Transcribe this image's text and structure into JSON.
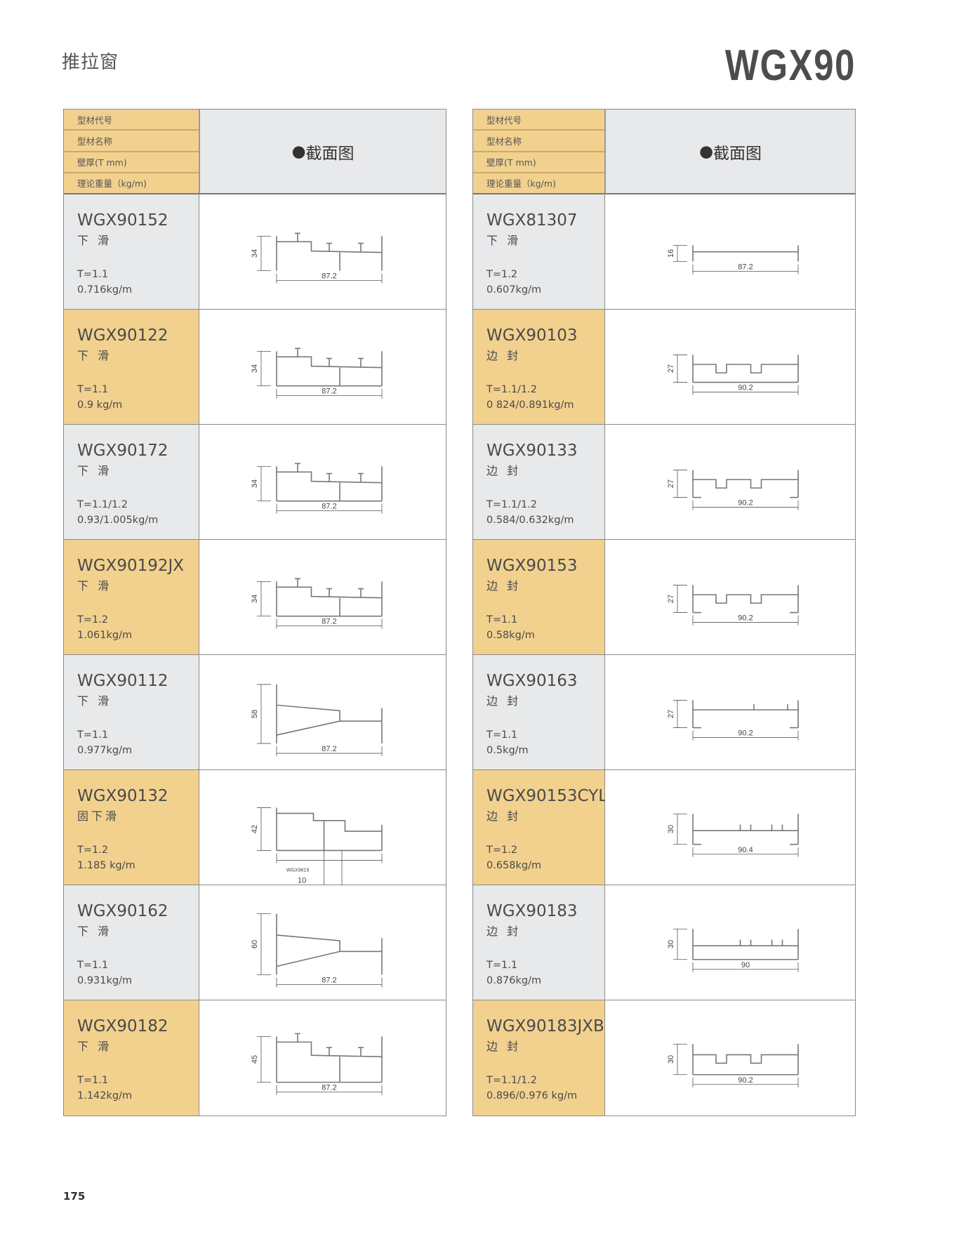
{
  "header": {
    "category": "推拉窗",
    "series": "WGX90",
    "page_number": "175"
  },
  "table_header": {
    "labels": [
      "型材代号",
      "型材名称",
      "壁厚(T mm)",
      "理论重量（kg/m)"
    ],
    "section_title": "截面图"
  },
  "colors": {
    "gold": "#f2d18f",
    "gray": "#e8e9eb",
    "line": "#8a8a8a"
  },
  "left_rows": [
    {
      "code": "WGX90152",
      "name": "下 滑",
      "thickness": "T=1.1",
      "weight": "0.716kg/m",
      "height_dim": "34",
      "width_dim": "87.2",
      "shape": "open-ledge"
    },
    {
      "code": "WGX90122",
      "name": "下 滑",
      "thickness": "T=1.1",
      "weight": "0.9 kg/m",
      "height_dim": "34",
      "width_dim": "87.2",
      "shape": "tube-ledge"
    },
    {
      "code": "WGX90172",
      "name": "下 滑",
      "thickness": "T=1.1/1.2",
      "weight": "0.93/1.005kg/m",
      "height_dim": "34",
      "width_dim": "87.2",
      "shape": "tube-ledge"
    },
    {
      "code": "WGX90192JX",
      "name": "下 滑",
      "thickness": "T=1.2",
      "weight": "1.061kg/m",
      "height_dim": "34",
      "width_dim": "87.2",
      "shape": "tube-ledge"
    },
    {
      "code": "WGX90112",
      "name": "下 滑",
      "thickness": "T=1.1",
      "weight": "0.977kg/m",
      "height_dim": "58",
      "width_dim": "87.2",
      "shape": "slope"
    },
    {
      "code": "WGX90132",
      "name": "固下滑",
      "thickness": "T=1.2",
      "weight": "1.185 kg/m",
      "height_dim": "42",
      "width_dim": "87.2",
      "shape": "fixed",
      "extra_label": "WGX9619",
      "extra_dim": "10"
    },
    {
      "code": "WGX90162",
      "name": "下 滑",
      "thickness": "T=1.1",
      "weight": "0.931kg/m",
      "height_dim": "60",
      "width_dim": "87.2",
      "shape": "slope-tall"
    },
    {
      "code": "WGX90182",
      "name": "下 滑",
      "thickness": "T=1.1",
      "weight": "1.142kg/m",
      "height_dim": "45",
      "width_dim": "87.2",
      "shape": "tube-ledge"
    }
  ],
  "right_rows": [
    {
      "code": "WGX81307",
      "name": "下 滑",
      "thickness": "T=1.2",
      "weight": "0.607kg/m",
      "height_dim": "16",
      "width_dim": "87.2",
      "shape": "flat"
    },
    {
      "code": "WGX90103",
      "name": "边 封",
      "thickness": "T=1.1/1.2",
      "weight": "0 824/0.891kg/m",
      "height_dim": "27",
      "width_dim": "90.2",
      "shape": "tube-notch"
    },
    {
      "code": "WGX90133",
      "name": "边 封",
      "thickness": "T=1.1/1.2",
      "weight": "0.584/0.632kg/m",
      "height_dim": "27",
      "width_dim": "90.2",
      "shape": "open-notch"
    },
    {
      "code": "WGX90153",
      "name": "边 封",
      "thickness": "T=1.1",
      "weight": "0.58kg/m",
      "height_dim": "27",
      "width_dim": "90.2",
      "shape": "open-notch"
    },
    {
      "code": "WGX90163",
      "name": "边 封",
      "thickness": "T=1.1",
      "weight": "0.5kg/m",
      "height_dim": "27",
      "width_dim": "90.2",
      "shape": "open-plain"
    },
    {
      "code": "WGX90153CYL",
      "name": "边 封",
      "thickness": "T=1.2",
      "weight": "0.658kg/m",
      "height_dim": "30",
      "width_dim": "90.4",
      "shape": "open-fins"
    },
    {
      "code": "WGX90183",
      "name": "边 封",
      "thickness": "T=1.1",
      "weight": "0.876kg/m",
      "height_dim": "30",
      "width_dim": "90",
      "shape": "tube-fins"
    },
    {
      "code": "WGX90183JXB",
      "name": "边 封",
      "thickness": "T=1.1/1.2",
      "weight": "0.896/0.976 kg/m",
      "height_dim": "30",
      "width_dim": "90.2",
      "shape": "tube-notch"
    }
  ]
}
